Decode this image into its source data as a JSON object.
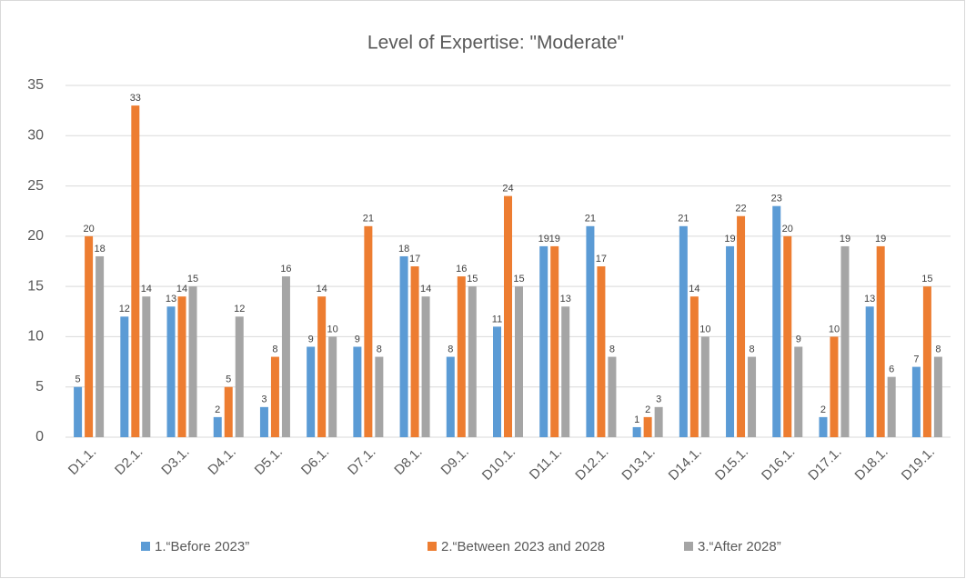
{
  "chart_data": {
    "type": "bar",
    "title": "Level of Expertise: \"Moderate\"",
    "categories": [
      "D1.1.",
      "D2.1.",
      "D3.1.",
      "D4.1.",
      "D5.1.",
      "D6.1.",
      "D7.1.",
      "D8.1.",
      "D9.1.",
      "D10.1.",
      "D11.1.",
      "D12.1.",
      "D13.1.",
      "D14.1.",
      "D15.1.",
      "D16.1.",
      "D17.1.",
      "D18.1.",
      "D19.1."
    ],
    "series": [
      {
        "name": "1.“Before 2023”",
        "color": "#5b9bd5",
        "values": [
          5,
          12,
          13,
          2,
          3,
          9,
          9,
          18,
          8,
          11,
          19,
          21,
          1,
          21,
          19,
          23,
          2,
          13,
          7
        ]
      },
      {
        "name": "2.“Between 2023 and 2028",
        "color": "#ed7d31",
        "values": [
          20,
          33,
          14,
          5,
          8,
          14,
          21,
          17,
          16,
          24,
          19,
          17,
          2,
          14,
          22,
          20,
          10,
          19,
          15
        ]
      },
      {
        "name": "3.“After 2028”",
        "color": "#a5a5a5",
        "values": [
          18,
          14,
          15,
          12,
          16,
          10,
          8,
          14,
          15,
          15,
          13,
          8,
          3,
          10,
          8,
          9,
          19,
          6,
          8
        ]
      }
    ],
    "ylim": [
      0,
      35
    ],
    "yticks": [
      0,
      5,
      10,
      15,
      20,
      25,
      30,
      35
    ],
    "grid": true,
    "legend": "bottom"
  }
}
